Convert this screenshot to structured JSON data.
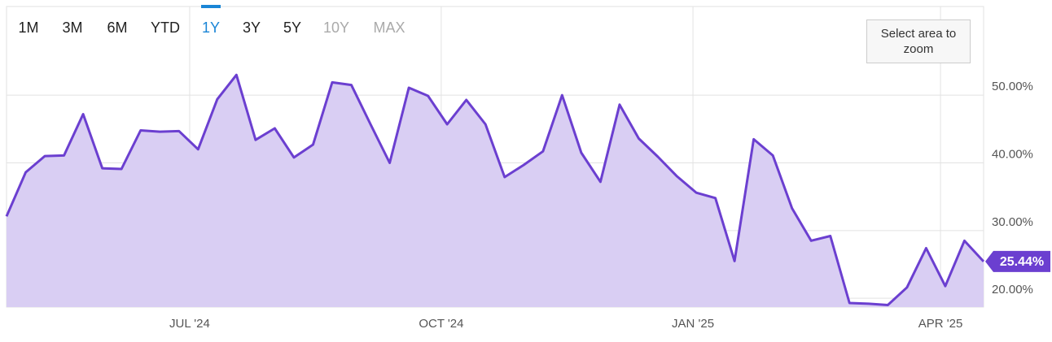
{
  "controls": {
    "ranges": [
      {
        "label": "1M",
        "state": "normal"
      },
      {
        "label": "3M",
        "state": "normal"
      },
      {
        "label": "6M",
        "state": "normal"
      },
      {
        "label": "YTD",
        "state": "normal"
      },
      {
        "label": "1Y",
        "state": "active"
      },
      {
        "label": "3Y",
        "state": "normal"
      },
      {
        "label": "5Y",
        "state": "normal"
      },
      {
        "label": "10Y",
        "state": "disabled"
      },
      {
        "label": "MAX",
        "state": "disabled"
      }
    ],
    "zoom_hint": "Select area to zoom"
  },
  "chart_data": {
    "type": "area",
    "color": "#6b3fd0",
    "fill": "#d9cef3",
    "x": [
      0,
      1,
      2,
      3,
      4,
      5,
      6,
      7,
      8,
      9,
      10,
      11,
      12,
      13,
      14,
      15,
      16,
      17,
      18,
      19,
      20,
      21,
      22,
      23,
      24,
      25,
      26,
      27,
      28,
      29,
      30,
      31,
      32,
      33,
      34,
      35,
      36,
      37,
      38,
      39,
      40,
      41,
      42,
      43,
      44,
      45,
      46,
      47,
      48,
      49,
      50,
      51
    ],
    "values": [
      32.1,
      38.6,
      41.0,
      41.1,
      47.2,
      39.2,
      39.1,
      44.8,
      44.6,
      44.7,
      42.0,
      49.4,
      53.0,
      43.4,
      45.1,
      40.8,
      42.7,
      51.9,
      51.5,
      45.7,
      40.0,
      51.1,
      49.9,
      45.7,
      49.3,
      45.7,
      37.9,
      39.7,
      41.7,
      50.0,
      41.5,
      37.2,
      48.6,
      43.6,
      40.9,
      38.0,
      35.6,
      34.8,
      25.5,
      43.5,
      41.1,
      33.3,
      28.5,
      29.2,
      19.3,
      19.2,
      19.0,
      21.6,
      27.4,
      21.8,
      28.5,
      25.44
    ],
    "end_label": {
      "value": 25.44,
      "label": "25.44%"
    },
    "xlim": [
      0,
      51
    ],
    "xticks": [
      {
        "value": 9.56,
        "label": "JUL '24"
      },
      {
        "value": 22.69,
        "label": "OCT '24"
      },
      {
        "value": 35.83,
        "label": "JAN '25"
      },
      {
        "value": 48.75,
        "label": "APR '25"
      }
    ],
    "ylim": [
      18.7,
      63.1
    ],
    "yticks": [
      {
        "value": 20,
        "label": "20.00%"
      },
      {
        "value": 30,
        "label": "30.00%"
      },
      {
        "value": 40,
        "label": "40.00%"
      },
      {
        "value": 50,
        "label": "50.00%"
      }
    ],
    "grid": true
  }
}
